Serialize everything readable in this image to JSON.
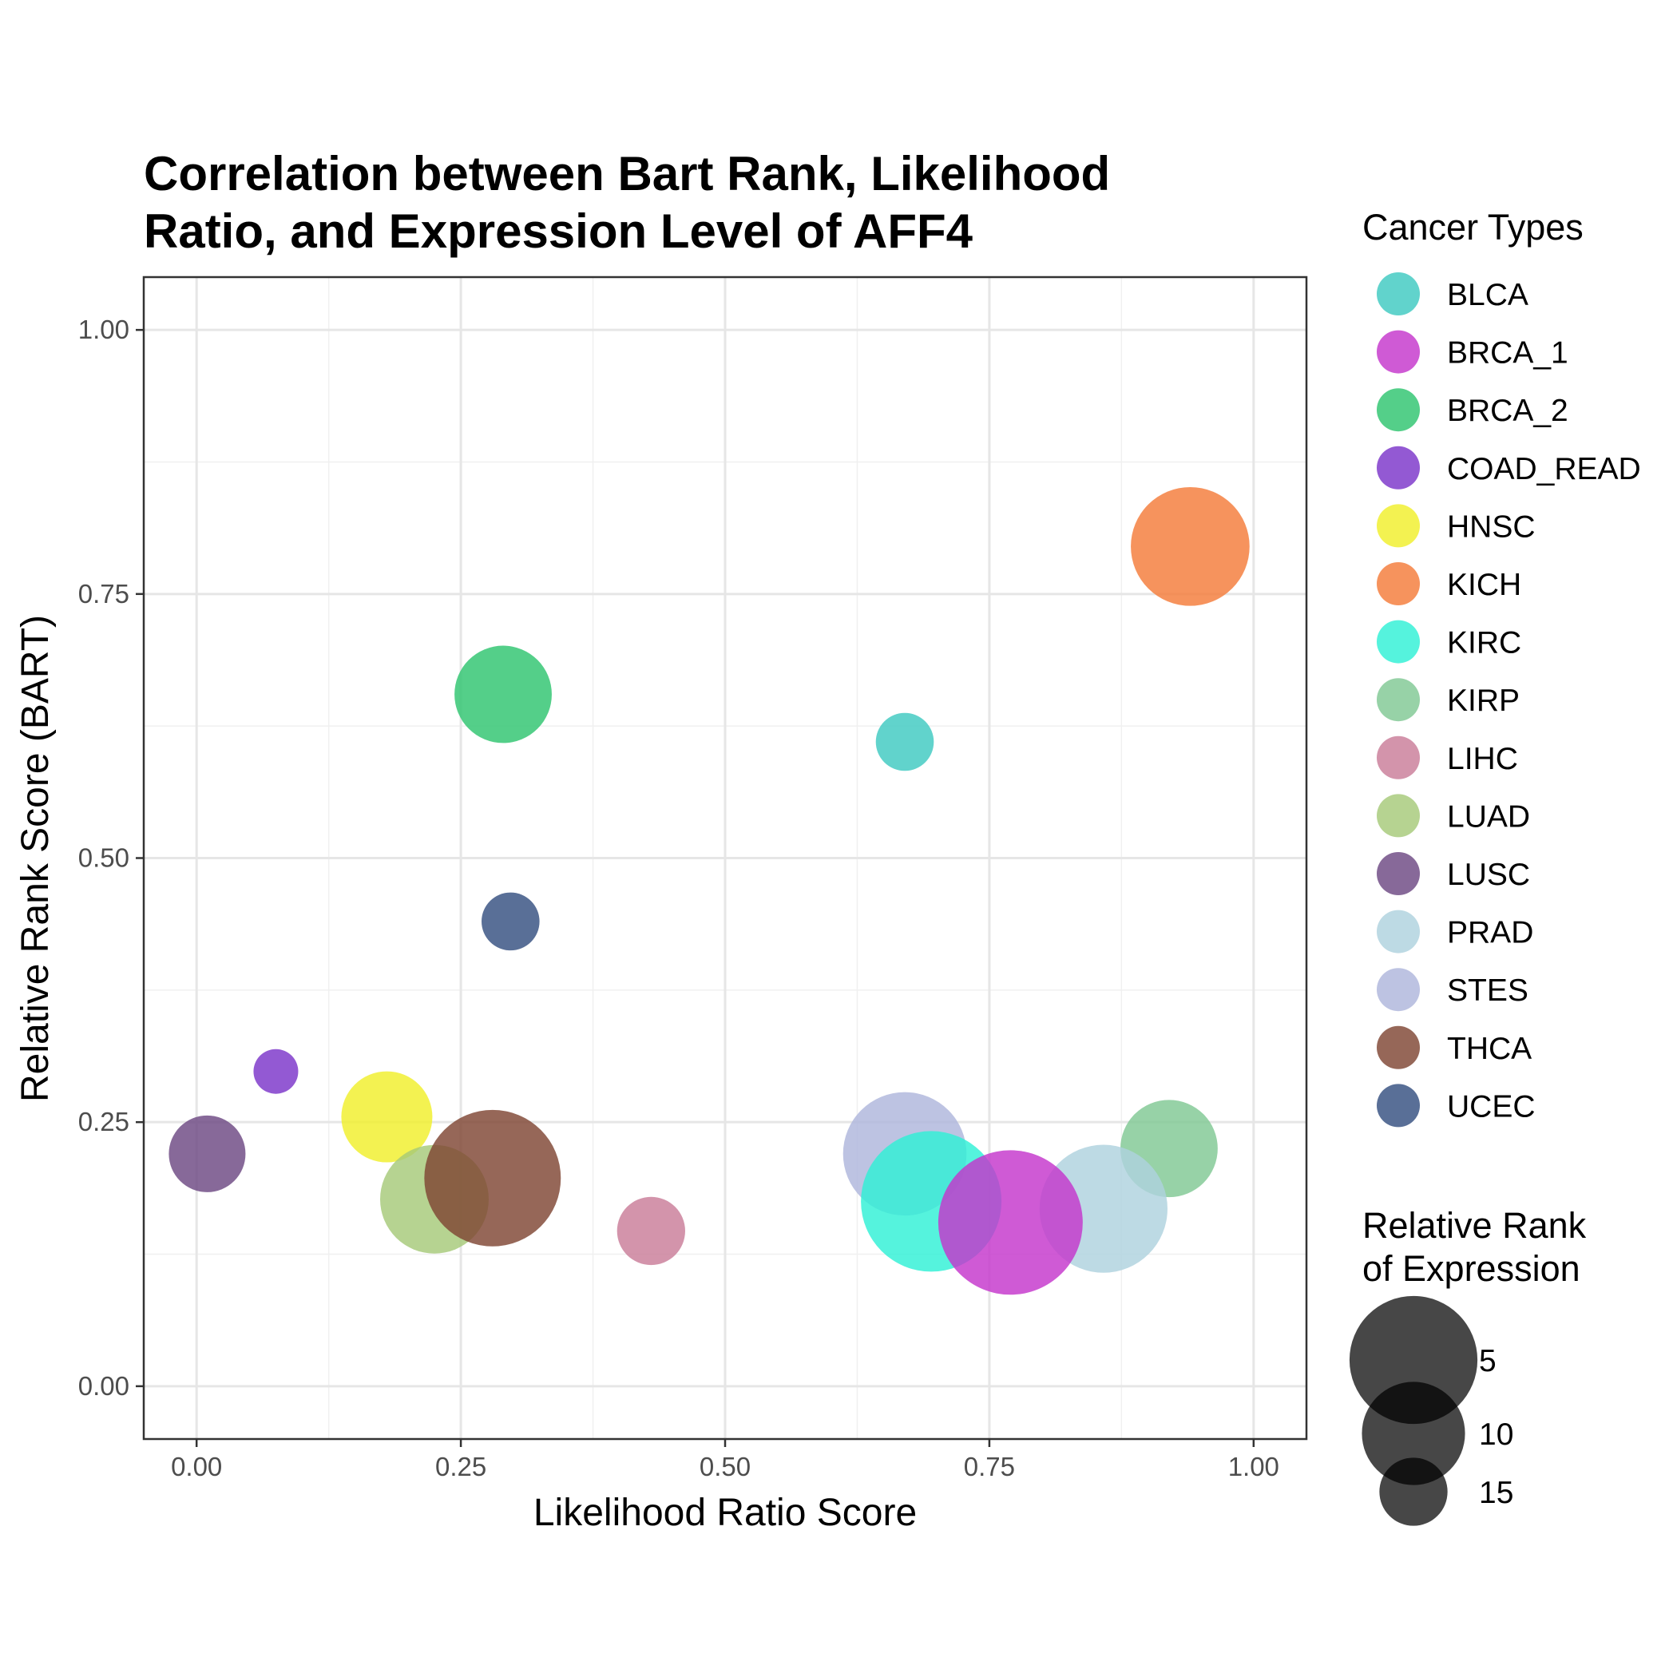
{
  "chart_data": {
    "type": "scatter",
    "title": [
      "Correlation between Bart Rank, Likelihood",
      "Ratio, and Expression Level of AFF4"
    ],
    "xlabel": "Likelihood Ratio Score",
    "ylabel": "Relative Rank Score (BART)",
    "xlim": [
      -0.05,
      1.05
    ],
    "ylim": [
      -0.05,
      1.05
    ],
    "x_ticks": [
      0,
      0.25,
      0.5,
      0.75,
      1
    ],
    "x_tick_labels": [
      "0.00",
      "0.25",
      "0.50",
      "0.75",
      "1.00"
    ],
    "y_ticks": [
      0,
      0.25,
      0.5,
      0.75,
      1
    ],
    "y_tick_labels": [
      "0.00",
      "0.25",
      "0.50",
      "0.75",
      "1.00"
    ],
    "grid": true,
    "color_legend": {
      "title": "Cancer Types",
      "placement": "right"
    },
    "size_legend": {
      "title": [
        "Relative Rank",
        "of Expression"
      ],
      "placement": "right",
      "entries": [
        {
          "label": "5",
          "value": 5
        },
        {
          "label": "10",
          "value": 10
        },
        {
          "label": "15",
          "value": 15
        }
      ]
    },
    "points": [
      {
        "name": "BLCA",
        "color": "#3ec9c1",
        "x": 0.67,
        "y": 0.61,
        "expression_rank": 16
      },
      {
        "name": "BRCA_1",
        "color": "#c436cc",
        "x": 0.77,
        "y": 0.155,
        "expression_rank": 1
      },
      {
        "name": "BRCA_2",
        "color": "#2ec46f",
        "x": 0.29,
        "y": 0.655,
        "expression_rank": 11
      },
      {
        "name": "COAD_READ",
        "color": "#7b34c9",
        "x": 0.075,
        "y": 0.298,
        "expression_rank": 17
      },
      {
        "name": "HNSC",
        "color": "#f0ef2b",
        "x": 0.18,
        "y": 0.255,
        "expression_rank": 12
      },
      {
        "name": "KICH",
        "color": "#f47b39",
        "x": 0.94,
        "y": 0.795,
        "expression_rank": 7
      },
      {
        "name": "KIRC",
        "color": "#2ff0d6",
        "x": 0.695,
        "y": 0.175,
        "expression_rank": 2
      },
      {
        "name": "KIRP",
        "color": "#80c894",
        "x": 0.92,
        "y": 0.225,
        "expression_rank": 11
      },
      {
        "name": "LIHC",
        "color": "#c97c98",
        "x": 0.43,
        "y": 0.147,
        "expression_rank": 15
      },
      {
        "name": "LUAD",
        "color": "#a6c979",
        "x": 0.225,
        "y": 0.177,
        "expression_rank": 9
      },
      {
        "name": "LUSC",
        "color": "#6c4882",
        "x": 0.01,
        "y": 0.22,
        "expression_rank": 14
      },
      {
        "name": "PRAD",
        "color": "#afd2de",
        "x": 0.858,
        "y": 0.168,
        "expression_rank": 5
      },
      {
        "name": "STES",
        "color": "#aeb6dc",
        "x": 0.67,
        "y": 0.22,
        "expression_rank": 6
      },
      {
        "name": "THCA",
        "color": "#7f4633",
        "x": 0.28,
        "y": 0.197,
        "expression_rank": 3
      },
      {
        "name": "UCEC",
        "color": "#354f80",
        "x": 0.297,
        "y": 0.44,
        "expression_rank": 16
      }
    ]
  }
}
